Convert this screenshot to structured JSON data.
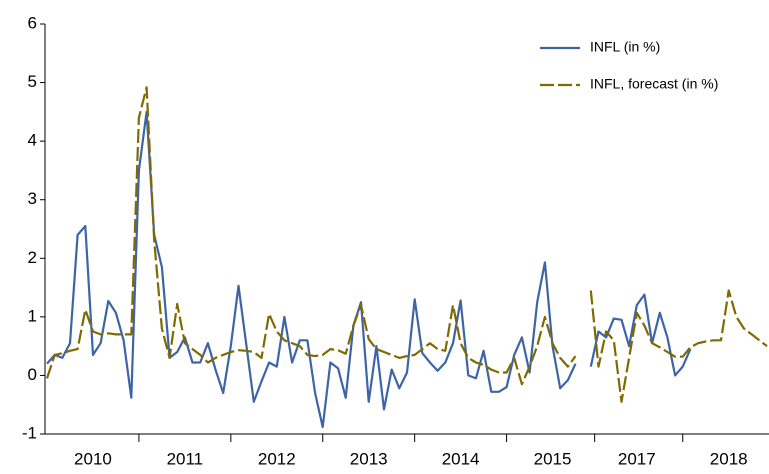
{
  "chart_data": {
    "type": "line",
    "categories": [
      null,
      null,
      null,
      null,
      null,
      null,
      "2010",
      null,
      null,
      null,
      null,
      null,
      null,
      null,
      null,
      null,
      null,
      null,
      "2011",
      null,
      null,
      null,
      null,
      null,
      null,
      null,
      null,
      null,
      null,
      null,
      "2012",
      null,
      null,
      null,
      null,
      null,
      null,
      null,
      null,
      null,
      null,
      null,
      "2013",
      null,
      null,
      null,
      null,
      null,
      null,
      null,
      null,
      null,
      null,
      null,
      "2014",
      null,
      null,
      null,
      null,
      null,
      null,
      null,
      null,
      null,
      null,
      null,
      "2015",
      null,
      null,
      null,
      null,
      null,
      null,
      null,
      null,
      null,
      null,
      "2017",
      null,
      null,
      null,
      null,
      null,
      null,
      null,
      null,
      null,
      null,
      null,
      "2018",
      null,
      null,
      null,
      null,
      null
    ],
    "series": [
      {
        "name": "INFL (in %)",
        "color": "#3e64a8",
        "values": [
          0.2,
          0.35,
          0.3,
          0.55,
          2.4,
          2.55,
          0.35,
          0.55,
          1.27,
          1.07,
          0.6,
          -0.38,
          3.5,
          4.5,
          2.4,
          1.85,
          0.3,
          0.4,
          0.65,
          0.22,
          0.22,
          0.55,
          0.1,
          -0.3,
          0.5,
          1.53,
          0.55,
          -0.45,
          -0.1,
          0.22,
          0.15,
          1.0,
          0.22,
          0.6,
          0.6,
          -0.3,
          -0.88,
          0.22,
          0.12,
          -0.38,
          0.85,
          1.25,
          -0.45,
          0.5,
          -0.58,
          0.1,
          -0.22,
          0.05,
          1.3,
          0.38,
          0.22,
          0.08,
          0.22,
          0.55,
          1.28,
          0.0,
          -0.05,
          0.42,
          -0.28,
          -0.28,
          -0.2,
          0.35,
          0.65,
          0.05,
          1.25,
          1.93,
          0.5,
          -0.22,
          -0.08,
          0.2,
          null,
          0.15,
          0.75,
          0.65,
          0.97,
          0.95,
          0.5,
          1.2,
          1.38,
          0.55,
          1.07,
          0.65,
          0.0,
          0.15,
          0.45,
          null,
          null,
          null,
          null,
          null,
          null,
          null,
          null,
          null,
          null
        ]
      },
      {
        "name": "INFL, forecast (in %)",
        "color": "#806a00",
        "values": [
          -0.05,
          0.35,
          0.38,
          0.42,
          0.45,
          1.12,
          0.75,
          0.7,
          0.72,
          0.7,
          0.7,
          0.7,
          4.4,
          4.92,
          2.3,
          0.8,
          0.3,
          1.22,
          0.55,
          0.45,
          0.35,
          0.22,
          0.3,
          0.35,
          0.4,
          0.43,
          0.42,
          0.4,
          0.3,
          1.05,
          0.75,
          0.6,
          0.55,
          0.5,
          0.35,
          0.33,
          0.35,
          0.45,
          0.43,
          0.37,
          0.85,
          1.2,
          0.62,
          0.45,
          0.4,
          0.35,
          0.3,
          0.33,
          0.35,
          0.45,
          0.55,
          0.45,
          0.42,
          1.2,
          0.55,
          0.3,
          0.22,
          0.18,
          0.1,
          0.05,
          0.05,
          0.3,
          -0.15,
          0.15,
          0.5,
          1.0,
          0.55,
          0.3,
          0.15,
          0.33,
          null,
          1.45,
          0.15,
          0.75,
          0.6,
          -0.45,
          0.3,
          1.07,
          0.85,
          0.55,
          0.48,
          0.4,
          0.32,
          0.32,
          0.48,
          0.55,
          0.58,
          0.6,
          0.6,
          1.45,
          1.0,
          0.8,
          0.7,
          0.6,
          0.5
        ]
      }
    ],
    "ylim": [
      -1,
      6
    ],
    "yticks": [
      -1,
      0,
      1,
      2,
      3,
      4,
      5,
      6
    ],
    "legend": "upper right"
  }
}
